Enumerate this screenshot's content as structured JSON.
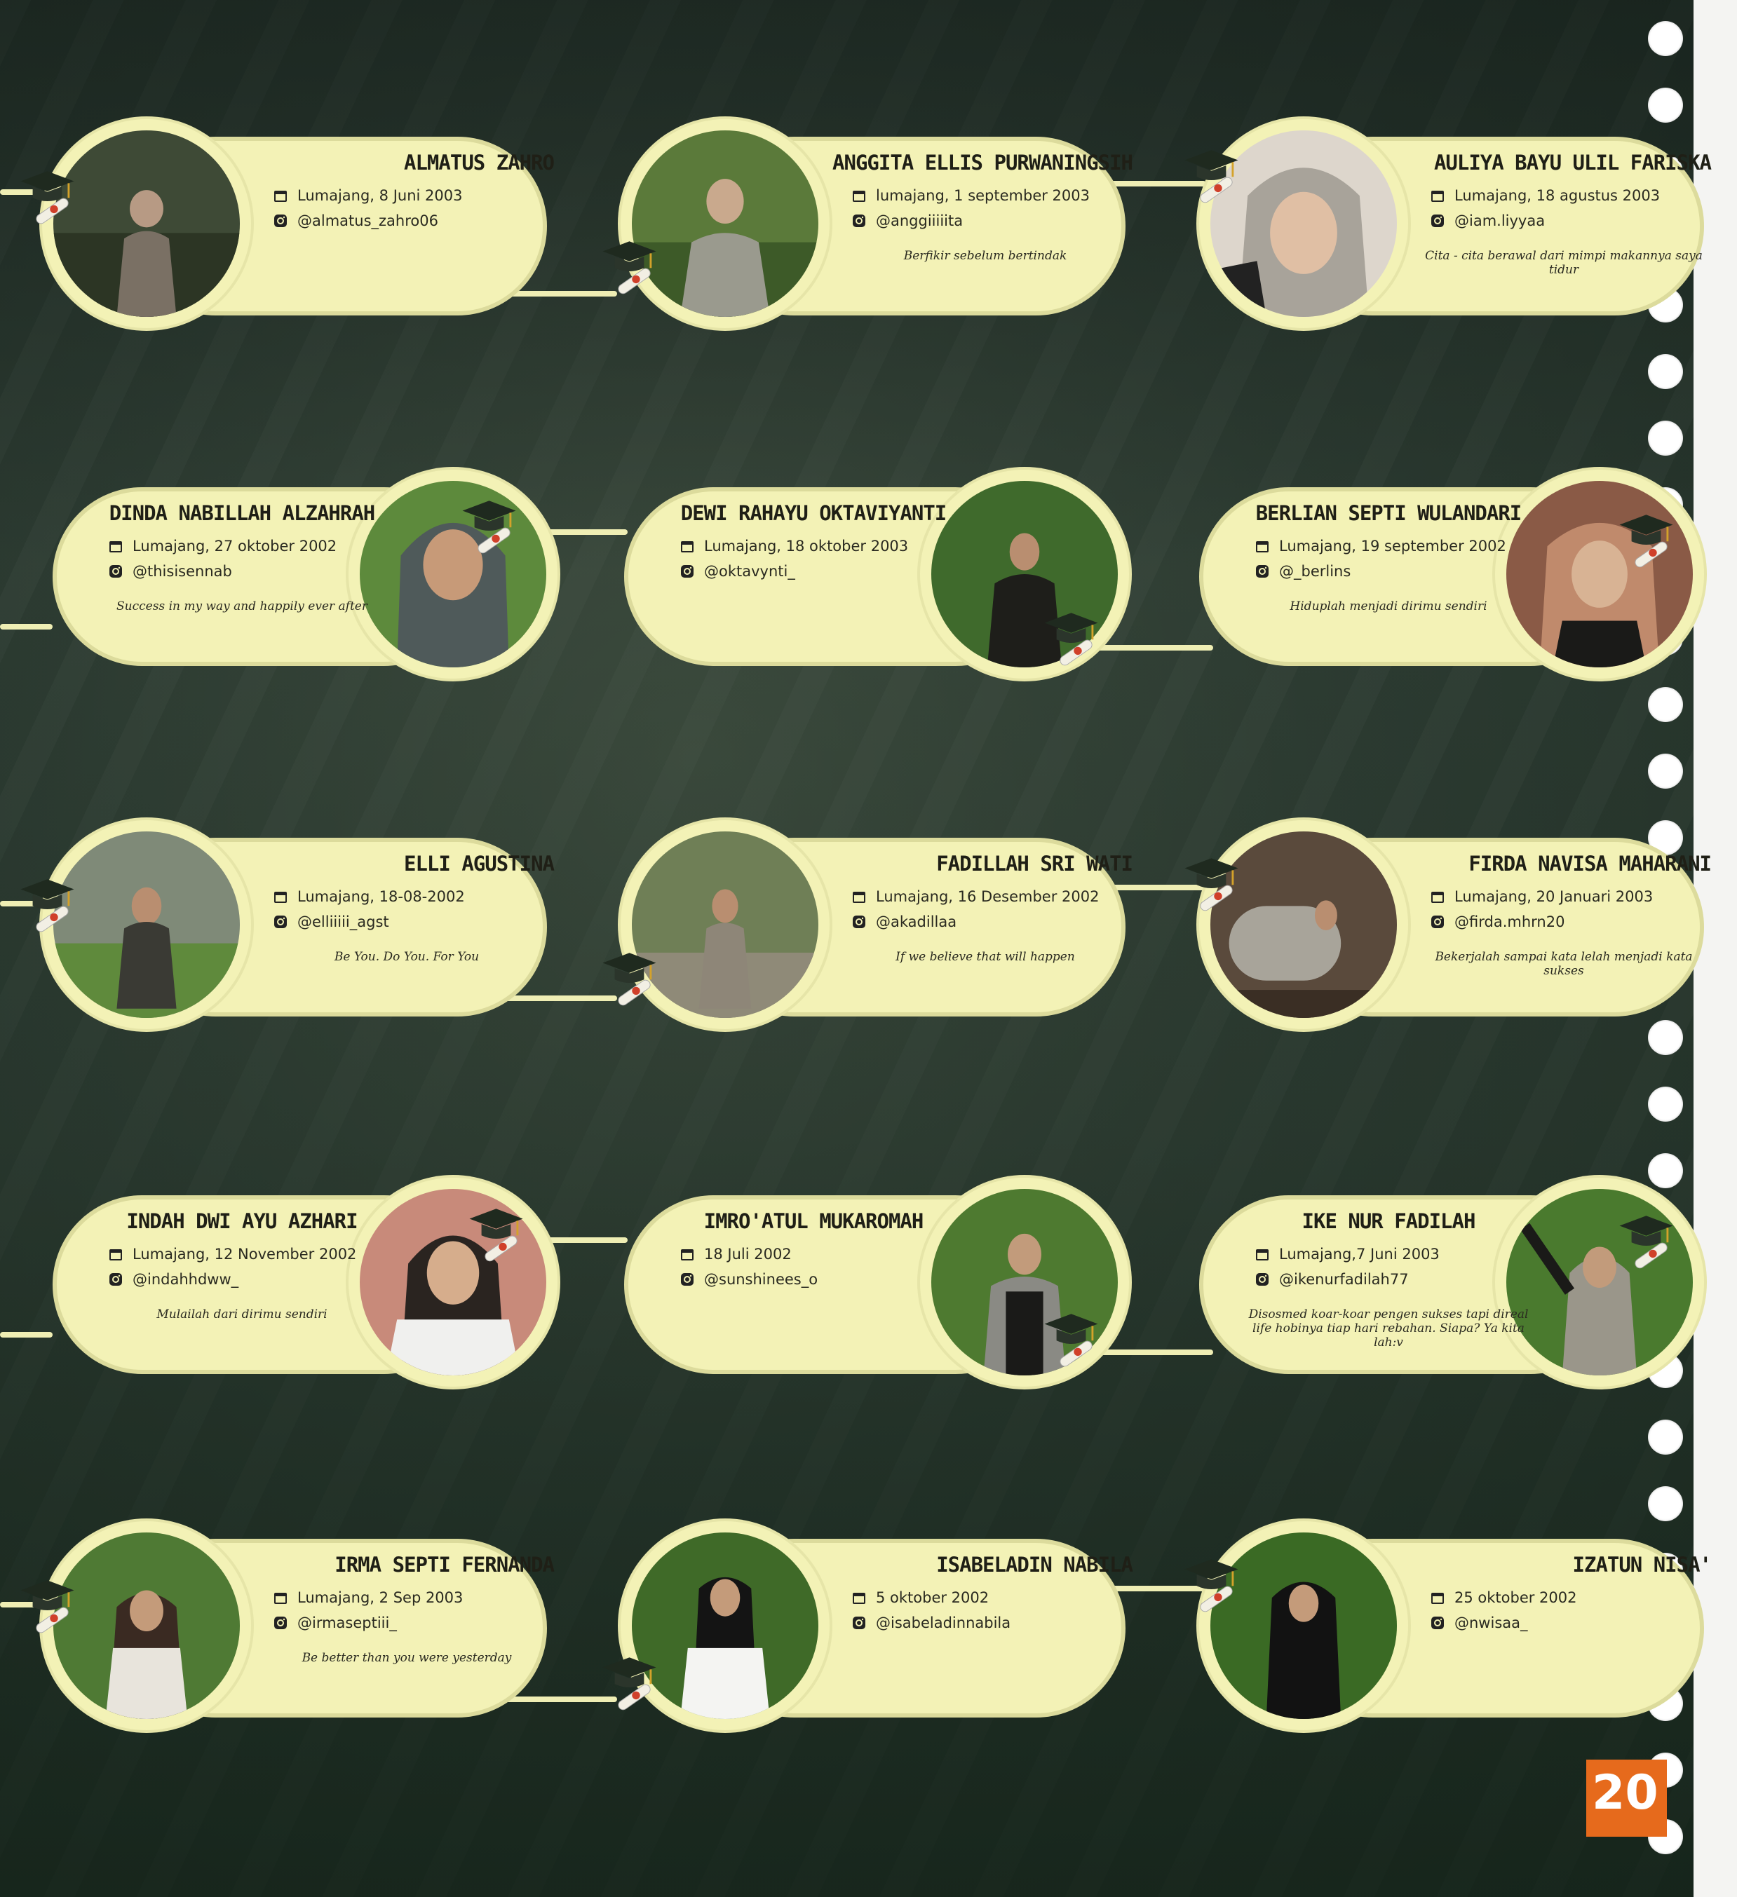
{
  "page_number": "20",
  "colors": {
    "card": "#f3f2b6",
    "connector": "#efeeb4",
    "page_tab": "#e66a1c",
    "background": "#2f3e35"
  },
  "icons": {
    "birth": "calendar-icon",
    "social": "instagram-icon",
    "decoration": "graduation-cap-diploma-icon"
  },
  "students": [
    {
      "name": "ALMATUS ZAHRO",
      "birth": "Lumajang, 8 Juni 2003",
      "instagram": "@almatus_zahro06",
      "quote": ""
    },
    {
      "name": "ANGGITA ELLIS PURWANINGSIH",
      "birth": "lumajang, 1 september 2003",
      "instagram": "@anggiiiiita",
      "quote": "Berfikir sebelum bertindak"
    },
    {
      "name": "AULIYA BAYU ULIL FARISKA",
      "birth": "Lumajang, 18 agustus 2003",
      "instagram": "@iam.liyyaa",
      "quote": "Cita - cita berawal dari mimpi makannya saya tidur"
    },
    {
      "name": "DINDA NABILLAH ALZAHRAH",
      "birth": "Lumajang, 27 oktober 2002",
      "instagram": "@thisisennab",
      "quote": "Success in my way and happily ever after"
    },
    {
      "name": "DEWI RAHAYU OKTAVIYANTI",
      "birth": "Lumajang, 18 oktober 2003",
      "instagram": "@oktavynti_",
      "quote": ""
    },
    {
      "name": "BERLIAN SEPTI WULANDARI",
      "birth": "Lumajang, 19 september 2002",
      "instagram": "@_berlins",
      "quote": "Hiduplah menjadi dirimu sendiri"
    },
    {
      "name": "ELLI AGUSTINA",
      "birth": "Lumajang, 18-08-2002",
      "instagram": "@elliiiii_agst",
      "quote": "Be You. Do You. For You"
    },
    {
      "name": "FADILLAH SRI WATI",
      "birth": "Lumajang, 16 Desember 2002",
      "instagram": "@akadillaa",
      "quote": "If we believe that will happen"
    },
    {
      "name": "FIRDA NAVISA MAHARANI",
      "birth": "Lumajang, 20 Januari 2003",
      "instagram": "@firda.mhrn20",
      "quote": "Bekerjalah sampai kata lelah menjadi kata sukses"
    },
    {
      "name": "INDAH DWI AYU AZHARI",
      "birth": "Lumajang, 12 November 2002",
      "instagram": "@indahhdww_",
      "quote": "Mulailah dari dirimu sendiri"
    },
    {
      "name": "IMRO'ATUL MUKAROMAH",
      "birth": "18 Juli 2002",
      "instagram": "@sunshinees_o",
      "quote": ""
    },
    {
      "name": "IKE NUR FADILAH",
      "birth": "Lumajang,7 Juni 2003",
      "instagram": "@ikenurfadilah77",
      "quote": "Disosmed koar-koar pengen sukses tapi direal life hobinya tiap hari rebahan. Siapa? Ya kita lah:v"
    },
    {
      "name": "IRMA SEPTI FERNANDA",
      "birth": "Lumajang, 2 Sep 2003",
      "instagram": "@irmaseptiii_",
      "quote": "Be better than you were yesterday"
    },
    {
      "name": "ISABELADIN NABILA",
      "birth": "5 oktober 2002",
      "instagram": "@isabeladinnabila",
      "quote": ""
    },
    {
      "name": "IZATUN NISA'",
      "birth": "25 oktober 2002",
      "instagram": "@nwisaa_",
      "quote": ""
    }
  ]
}
